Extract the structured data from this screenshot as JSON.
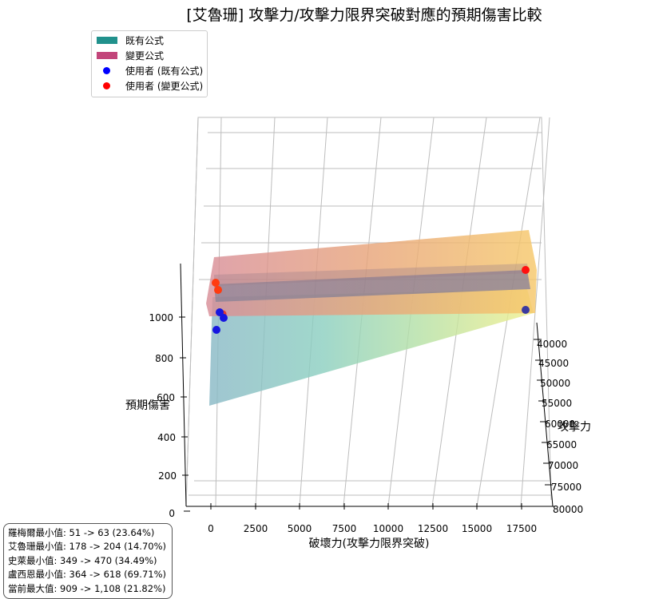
{
  "chart_data": {
    "type": "surface3d",
    "title": "[艾魯珊] 攻擊力/攻擊力限界突破對應的預期傷害比較",
    "xlabel": "破壞力(攻擊力限界突破)",
    "ylabel": "攻擊力",
    "zlabel": "預期傷害",
    "x_ticks": [
      "0",
      "2500",
      "5000",
      "7500",
      "10000",
      "12500",
      "15000",
      "17500"
    ],
    "y_ticks": [
      "40000",
      "45000",
      "50000",
      "55000",
      "60000",
      "65000",
      "70000",
      "75000",
      "80000"
    ],
    "z_ticks": [
      "0",
      "200",
      "400",
      "600",
      "800",
      "1000"
    ],
    "xlim": [
      0,
      17500
    ],
    "ylim": [
      40000,
      80000
    ],
    "legend": [
      {
        "label": "既有公式",
        "kind": "patch",
        "color": "#21918c"
      },
      {
        "label": "變更公式",
        "kind": "patch",
        "color": "#c2457a"
      },
      {
        "label": "使用者 (既有公式)",
        "kind": "point",
        "color": "#0000ff"
      },
      {
        "label": "使用者 (變更公式)",
        "kind": "point",
        "color": "#ff0000"
      }
    ],
    "legend_loc": "upper-left"
  },
  "stats": [
    "羅梅爾最小值: 51 -> 63 (23.64%)",
    "艾魯珊最小值: 178 -> 204 (14.70%)",
    "史萊最小值: 349 -> 470 (34.49%)",
    "盧西恩最小值: 364 -> 618 (69.71%)",
    "當前最大值: 909 -> 1,108 (21.82%)"
  ]
}
